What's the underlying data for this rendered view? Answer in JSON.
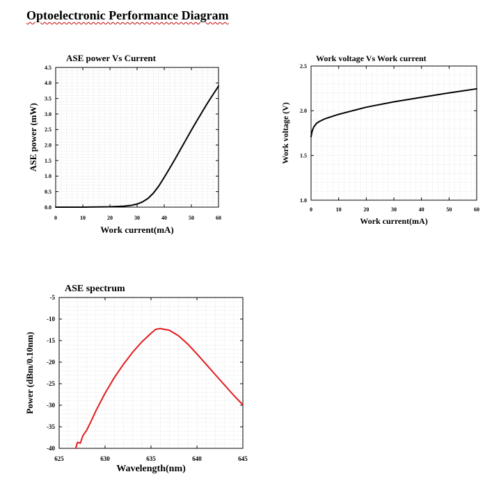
{
  "document": {
    "title": "Optoelectronic Performance Diagram"
  },
  "chart_data": [
    {
      "type": "line",
      "title": "ASE power Vs Current",
      "xlabel": "Work current(mA)",
      "ylabel": "ASE power (mW)",
      "xlim": [
        0,
        60
      ],
      "ylim": [
        0,
        4.5
      ],
      "xticks": [
        "0",
        "10",
        "20",
        "30",
        "40",
        "50",
        "60"
      ],
      "yticks": [
        "0.0",
        "0.5",
        "1.0",
        "1.5",
        "2.0",
        "2.5",
        "3.0",
        "3.5",
        "4.0",
        "4.5"
      ],
      "grid": true,
      "series": [
        {
          "name": "ASE power",
          "color": "#000000",
          "x": [
            0,
            10,
            20,
            25,
            28,
            30,
            32,
            34,
            36,
            38,
            40,
            42,
            44,
            46,
            48,
            50,
            52,
            54,
            56,
            58,
            60
          ],
          "y": [
            0,
            0,
            0.01,
            0.03,
            0.06,
            0.1,
            0.17,
            0.28,
            0.45,
            0.68,
            0.96,
            1.25,
            1.55,
            1.86,
            2.17,
            2.48,
            2.78,
            3.07,
            3.36,
            3.63,
            3.9
          ]
        }
      ]
    },
    {
      "type": "line",
      "title": "Work voltage Vs  Work current",
      "xlabel": "Work current(mA)",
      "ylabel": "Work voltage (V)",
      "xlim": [
        0,
        60
      ],
      "ylim": [
        1.0,
        2.5
      ],
      "xticks": [
        "0",
        "10",
        "20",
        "30",
        "40",
        "50",
        "60"
      ],
      "yticks": [
        "1.0",
        "1.5",
        "2.0",
        "2.5"
      ],
      "grid": true,
      "series": [
        {
          "name": "Work voltage",
          "color": "#000000",
          "x": [
            0,
            0.3,
            0.6,
            1,
            1.5,
            2,
            3,
            4,
            5,
            7,
            10,
            15,
            20,
            30,
            40,
            50,
            60
          ],
          "y": [
            1.71,
            1.76,
            1.79,
            1.82,
            1.84,
            1.86,
            1.88,
            1.895,
            1.91,
            1.93,
            1.96,
            2.0,
            2.04,
            2.1,
            2.15,
            2.2,
            2.245
          ]
        }
      ]
    },
    {
      "type": "line",
      "title": "ASE  spectrum",
      "xlabel": "Wavelength(nm)",
      "ylabel": "Power (dBm/0.10nm)",
      "xlim": [
        625,
        645
      ],
      "ylim": [
        -40,
        -5
      ],
      "xticks": [
        "625",
        "630",
        "635",
        "640",
        "645"
      ],
      "yticks": [
        "-40",
        "-35",
        "-30",
        "-25",
        "-20",
        "-15",
        "-10",
        "-5"
      ],
      "grid": true,
      "series": [
        {
          "name": "ASE spectrum",
          "color": "#e31a1c",
          "x": [
            626.8,
            627.0,
            627.3,
            627.6,
            628,
            628.5,
            629,
            630,
            631,
            632,
            633,
            634,
            635,
            635.5,
            636,
            637,
            638,
            639,
            640,
            641,
            642,
            643,
            644,
            645
          ],
          "y": [
            -40,
            -38.6,
            -38.8,
            -37,
            -35.8,
            -33.6,
            -31.3,
            -27.2,
            -23.6,
            -20.5,
            -17.7,
            -15.3,
            -13.3,
            -12.4,
            -12.2,
            -12.6,
            -13.9,
            -15.8,
            -18.1,
            -20.5,
            -22.9,
            -25.3,
            -27.7,
            -29.9
          ]
        }
      ]
    }
  ]
}
